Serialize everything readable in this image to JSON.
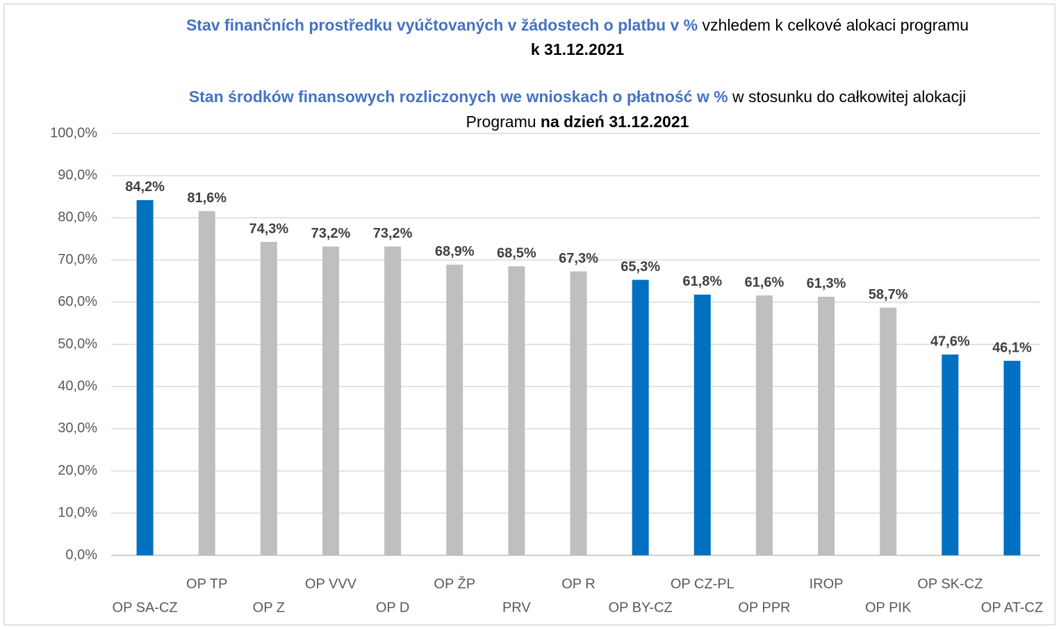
{
  "chart_data": {
    "type": "bar",
    "title_cz": [
      "Stav finančních prostředku vyúčtovaných v žádostech o platbu v %",
      "vzhledem k celkové alokaci programu",
      "k 31.12.2021"
    ],
    "title_pl": [
      "Stan środków finansowych rozliczonych we wnioskach o płatność w %",
      "w stosunku do całkowitej alokacji",
      "Programu",
      "na dzień 31.12.2021"
    ],
    "categories": [
      "OP SA-CZ",
      "OP TP",
      "OP Z",
      "OP VVV",
      "OP D",
      "OP ŽP",
      "PRV",
      "OP R",
      "OP BY-CZ",
      "OP CZ-PL",
      "OP PPR",
      "IROP",
      "OP PIK",
      "OP SK-CZ",
      "OP AT-CZ"
    ],
    "values": [
      84.2,
      81.6,
      74.3,
      73.2,
      73.2,
      68.9,
      68.5,
      67.3,
      65.3,
      61.8,
      61.6,
      61.3,
      58.7,
      47.6,
      46.1
    ],
    "value_labels": [
      "84,2%",
      "81,6%",
      "74,3%",
      "73,2%",
      "73,2%",
      "68,9%",
      "68,5%",
      "67,3%",
      "65,3%",
      "61,8%",
      "61,6%",
      "61,3%",
      "58,7%",
      "47,6%",
      "46,1%"
    ],
    "colors": [
      "#0070c0",
      "#bfbfbf",
      "#bfbfbf",
      "#bfbfbf",
      "#bfbfbf",
      "#bfbfbf",
      "#bfbfbf",
      "#bfbfbf",
      "#0070c0",
      "#0070c0",
      "#bfbfbf",
      "#bfbfbf",
      "#bfbfbf",
      "#0070c0",
      "#0070c0"
    ],
    "ylim": [
      0,
      100
    ],
    "yticks": [
      {
        "value": 0,
        "label": "0,0%"
      },
      {
        "value": 10,
        "label": "10,0%"
      },
      {
        "value": 20,
        "label": "20,0%"
      },
      {
        "value": 30,
        "label": "30,0%"
      },
      {
        "value": 40,
        "label": "40,0%"
      },
      {
        "value": 50,
        "label": "50,0%"
      },
      {
        "value": 60,
        "label": "60,0%"
      },
      {
        "value": 70,
        "label": "70,0%"
      },
      {
        "value": 80,
        "label": "80,0%"
      },
      {
        "value": 90,
        "label": "90,0%"
      },
      {
        "value": 100,
        "label": "100,0%"
      }
    ],
    "grid": true
  }
}
